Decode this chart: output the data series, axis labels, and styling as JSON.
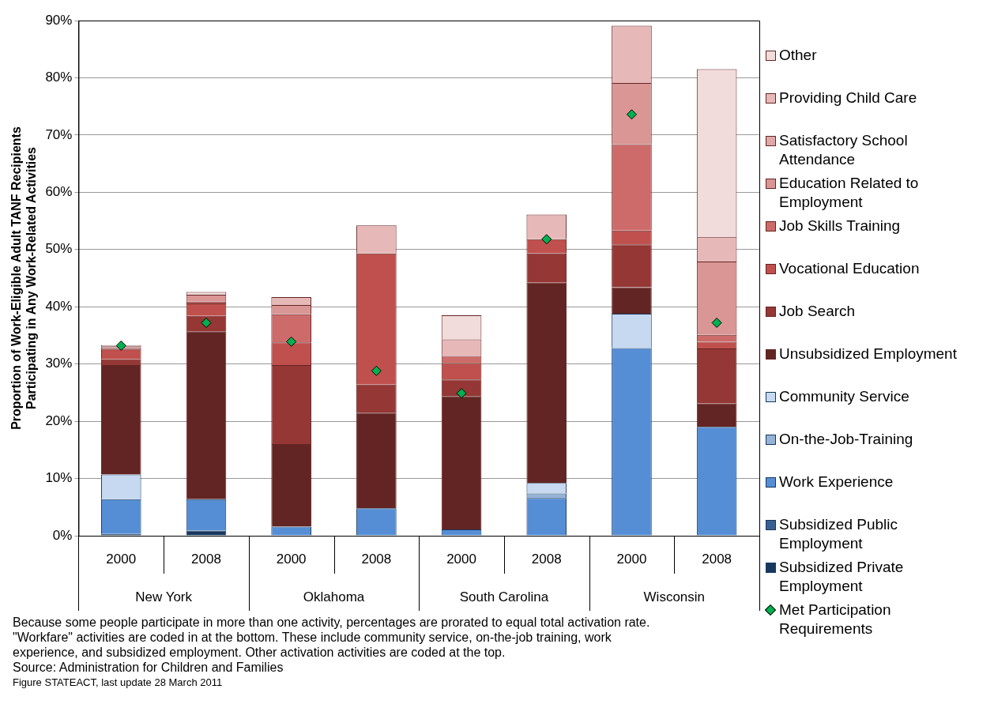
{
  "chart_data": {
    "type": "bar",
    "stacked": true,
    "ylabel": "Proportion of Work-Eligible Adult TANF Recipients Participating in Any Work-Related Activities",
    "categories": [
      "2000",
      "2008",
      "2000",
      "2008",
      "2000",
      "2008",
      "2000",
      "2008"
    ],
    "ylim": [
      0,
      90
    ],
    "yticks": [
      {
        "value": 0,
        "label": "0%"
      },
      {
        "value": 10,
        "label": "10%"
      },
      {
        "value": 20,
        "label": "20%"
      },
      {
        "value": 30,
        "label": "30%"
      },
      {
        "value": 40,
        "label": "40%"
      },
      {
        "value": 50,
        "label": "50%"
      },
      {
        "value": 60,
        "label": "60%"
      },
      {
        "value": 70,
        "label": "70%"
      },
      {
        "value": 80,
        "label": "80%"
      },
      {
        "value": 90,
        "label": "90%"
      }
    ],
    "grid": "y",
    "legend": "right",
    "series": [
      {
        "name": "Subsidized Private Employment",
        "color": "#17375e",
        "values": [
          0.3,
          0.9,
          0,
          0,
          0,
          0,
          0,
          0
        ]
      },
      {
        "name": "Subsidized Public Employment",
        "color": "#376092",
        "values": [
          0,
          0,
          0,
          0,
          0,
          0,
          0,
          0
        ]
      },
      {
        "name": "Work Experience",
        "color": "#558ed5",
        "values": [
          6.1,
          5.5,
          1.6,
          4.8,
          1.1,
          6.6,
          32.8,
          19.0
        ]
      },
      {
        "name": "On-the-Job-Training",
        "color": "#95b3d7",
        "values": [
          0,
          0,
          0,
          0,
          0,
          0.8,
          0,
          0
        ]
      },
      {
        "name": "Community Service",
        "color": "#c6d9f1",
        "values": [
          4.3,
          0,
          0,
          0,
          0,
          1.8,
          6.0,
          0
        ]
      },
      {
        "name": "Unsubsidized Employment",
        "color": "#632523",
        "values": [
          19.1,
          29.3,
          14.4,
          16.7,
          23.3,
          35.0,
          4.6,
          4.1
        ]
      },
      {
        "name": "Job Search",
        "color": "#953735",
        "values": [
          1.0,
          2.7,
          13.8,
          4.9,
          2.9,
          5.1,
          7.5,
          9.6
        ]
      },
      {
        "name": "Vocational Education",
        "color": "#c0504d",
        "values": [
          1.8,
          2.2,
          4.0,
          22.9,
          2.9,
          2.5,
          2.4,
          1.2
        ]
      },
      {
        "name": "Job Skills Training",
        "color": "#cd6b6a",
        "values": [
          0,
          0.3,
          4.9,
          0,
          1.2,
          0,
          15.1,
          1.2
        ]
      },
      {
        "name": "Education Related to Employment",
        "color": "#d99694",
        "values": [
          0.3,
          1.2,
          1.6,
          0,
          0,
          0,
          10.7,
          12.8
        ]
      },
      {
        "name": "Satisfactory School Attendance",
        "color": "#dfa8a7",
        "values": [
          0,
          0,
          0,
          0,
          0,
          0,
          0,
          0
        ]
      },
      {
        "name": "Providing Child Care",
        "color": "#e6b9b8",
        "values": [
          0.2,
          0,
          1.4,
          4.9,
          2.9,
          4.3,
          10.0,
          4.3
        ]
      },
      {
        "name": "Other",
        "color": "#f2dcdb",
        "values": [
          0.2,
          0.5,
          0,
          0,
          4.2,
          0,
          0,
          29.3
        ]
      },
      {
        "name": "Met Participation Requirements",
        "type": "scatter",
        "marker": "diamond",
        "color": "#00b050",
        "values": [
          33.2,
          37.2,
          33.9,
          28.8,
          24.9,
          51.8,
          73.6,
          37.2
        ]
      }
    ],
    "annotations": [
      "New York",
      "Oklahoma",
      "South Carolina",
      "Wisconsin",
      "Because some people participate in more than one activity, percentages are prorated to equal total activation rate.",
      "\"Workfare\" activities are coded in at the bottom.  These include community service, on-the-job training, work experience, and subsidized employment.  Other activation activities are coded at the top.",
      "Source:  Administration for Children and Families",
      "Figure STATEACT,  last update 28 March 2011"
    ]
  }
}
